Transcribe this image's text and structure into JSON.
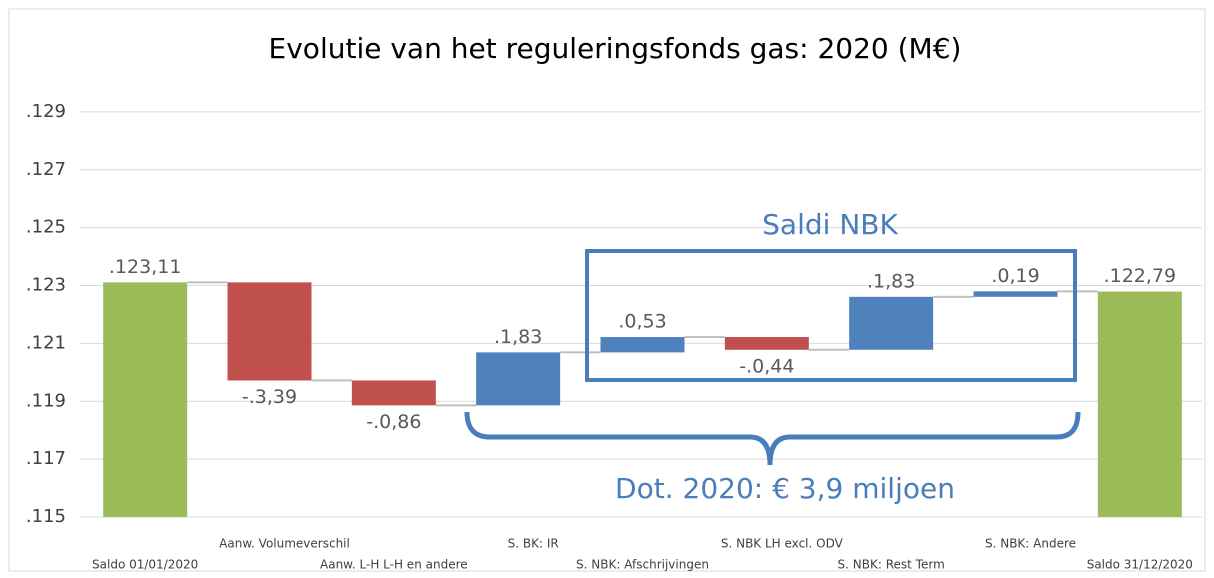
{
  "chart_data": {
    "type": "waterfall",
    "title": "Evolutie van het reguleringsfonds gas: 2020 (M€)",
    "categories": [
      "Saldo 01/01/2020",
      "Aanw. Volumeverschil",
      "Aanw. L-H L-H en andere",
      "S. BK: IR",
      "S. NBK: Afschrijvingen",
      "S. NBK LH excl. ODV",
      "S. NBK: Rest Term",
      "S. NBK: Andere",
      "Saldo 31/12/2020"
    ],
    "values": [
      123.11,
      -3.39,
      -0.86,
      1.83,
      0.53,
      -0.44,
      1.83,
      0.19,
      122.79
    ],
    "value_labels": [
      ".123,11",
      "-.3,39",
      "-.0,86",
      ".1,83",
      ".0,53",
      "-.0,44",
      ".1,83",
      ".0,19",
      ".122,79"
    ],
    "measure": [
      "total",
      "relative",
      "relative",
      "relative",
      "relative",
      "relative",
      "relative",
      "relative",
      "total"
    ],
    "total_color": "#9bbb59",
    "increase_color": "#4f81bd",
    "decrease_color": "#c0504d",
    "ylim": [
      115,
      130
    ],
    "yticks": [
      {
        "value": 115,
        "label": ".115"
      },
      {
        "value": 117,
        "label": ".117"
      },
      {
        "value": 119,
        "label": ".119"
      },
      {
        "value": 121,
        "label": ".121"
      },
      {
        "value": 123,
        "label": ".123"
      },
      {
        "value": 125,
        "label": ".125"
      },
      {
        "value": 127,
        "label": ".127"
      },
      {
        "value": 129,
        "label": ".129"
      }
    ],
    "grid": true,
    "annotations": [
      "Saldi NBK",
      "Dot. 2020: € 3,9 miljoen"
    ]
  }
}
